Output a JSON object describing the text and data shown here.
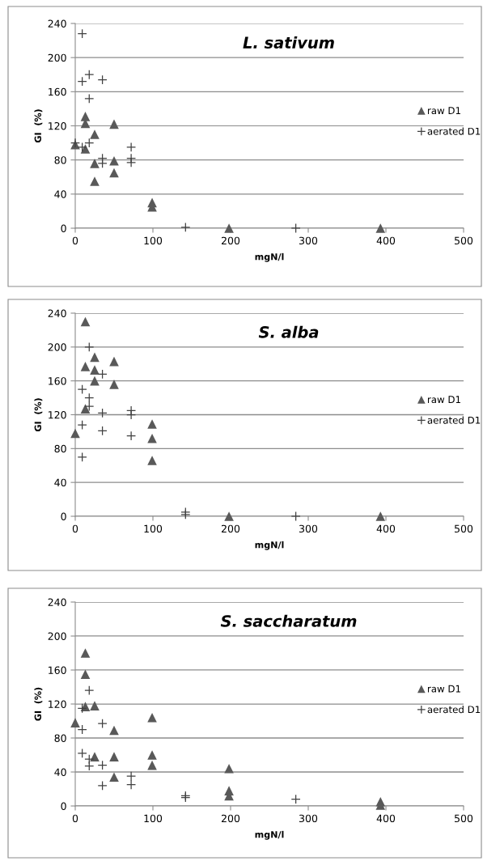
{
  "chart_data": [
    {
      "type": "scatter",
      "title": "L. sativum",
      "xlabel": "mgN/l",
      "ylabel": "GI  (%)",
      "xlim": [
        0,
        500
      ],
      "xticks": [
        0,
        100,
        200,
        300,
        400,
        500
      ],
      "ylim": [
        0,
        240
      ],
      "yticks": [
        0,
        40,
        80,
        120,
        160,
        200,
        240
      ],
      "grid": "y",
      "legend": "right",
      "series": [
        {
          "name": "raw D1",
          "color": "#595959",
          "marker": "triangle",
          "x": [
            0,
            13,
            13,
            13,
            25,
            25,
            25,
            50,
            50,
            50,
            99,
            99,
            198,
            393
          ],
          "values": [
            98,
            131,
            123,
            93,
            110,
            76,
            55,
            122,
            79,
            65,
            30,
            25,
            0,
            0
          ]
        },
        {
          "name": "aerated D1",
          "color": "#404040",
          "marker": "cross",
          "x": [
            0,
            9,
            9,
            9,
            18,
            18,
            18,
            35,
            35,
            35,
            72,
            72,
            72,
            142,
            284
          ],
          "values": [
            100,
            228,
            172,
            95,
            180,
            152,
            100,
            174,
            82,
            76,
            95,
            82,
            77,
            1,
            0
          ]
        }
      ]
    },
    {
      "type": "scatter",
      "title": "S. alba",
      "xlabel": "mgN/l",
      "ylabel": "GI  (%)",
      "xlim": [
        0,
        500
      ],
      "xticks": [
        0,
        100,
        200,
        300,
        400,
        500
      ],
      "ylim": [
        0,
        240
      ],
      "yticks": [
        0,
        40,
        80,
        120,
        160,
        200,
        240
      ],
      "grid": "y",
      "legend": "right",
      "series": [
        {
          "name": "raw D1",
          "color": "#595959",
          "marker": "triangle",
          "x": [
            0,
            13,
            13,
            13,
            25,
            25,
            25,
            50,
            50,
            99,
            99,
            99,
            198,
            393
          ],
          "values": [
            98,
            230,
            177,
            127,
            188,
            173,
            160,
            183,
            156,
            109,
            92,
            66,
            0,
            0
          ]
        },
        {
          "name": "aerated D1",
          "color": "#404040",
          "marker": "cross",
          "x": [
            9,
            9,
            9,
            18,
            18,
            18,
            35,
            35,
            35,
            72,
            72,
            72,
            142,
            142,
            284
          ],
          "values": [
            150,
            108,
            70,
            200,
            140,
            130,
            168,
            122,
            101,
            125,
            120,
            95,
            5,
            2,
            0
          ]
        }
      ]
    },
    {
      "type": "scatter",
      "title": "S. saccharatum",
      "xlabel": "mgN/l",
      "ylabel": "GI  (%)",
      "xlim": [
        0,
        500
      ],
      "xticks": [
        0,
        100,
        200,
        300,
        400,
        500
      ],
      "ylim": [
        0,
        240
      ],
      "yticks": [
        0,
        40,
        80,
        120,
        160,
        200,
        240
      ],
      "grid": "y",
      "legend": "right",
      "series": [
        {
          "name": "raw D1",
          "color": "#595959",
          "marker": "triangle",
          "x": [
            0,
            13,
            13,
            13,
            25,
            25,
            50,
            50,
            50,
            99,
            99,
            99,
            198,
            198,
            198,
            393,
            393
          ],
          "values": [
            98,
            180,
            155,
            117,
            118,
            58,
            89,
            58,
            34,
            104,
            60,
            48,
            44,
            18,
            12,
            5,
            1
          ]
        },
        {
          "name": "aerated D1",
          "color": "#404040",
          "marker": "cross",
          "x": [
            9,
            9,
            9,
            18,
            18,
            18,
            35,
            35,
            35,
            72,
            72,
            142,
            142,
            284
          ],
          "values": [
            115,
            90,
            62,
            136,
            55,
            47,
            97,
            48,
            24,
            35,
            25,
            12,
            10,
            8
          ]
        }
      ]
    }
  ]
}
